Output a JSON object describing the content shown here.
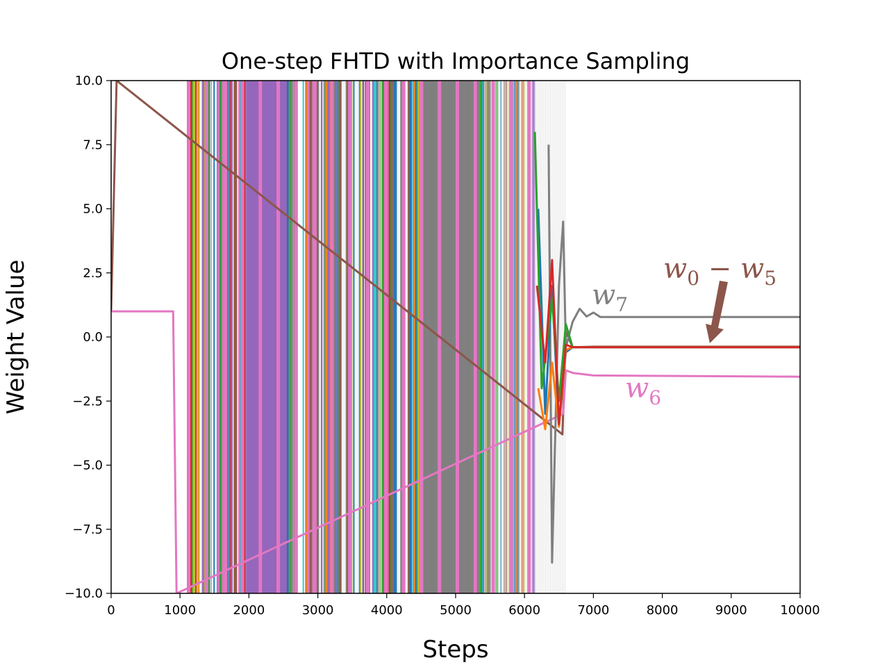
{
  "chart_data": {
    "type": "line",
    "title": "One-step FHTD with Importance Sampling",
    "xlabel": "Steps",
    "ylabel": "Weight Value",
    "xlim": [
      0,
      10000
    ],
    "ylim": [
      -10,
      10
    ],
    "x_ticks": [
      "0",
      "1000",
      "2000",
      "3000",
      "4000",
      "5000",
      "6000",
      "7000",
      "8000",
      "9000",
      "10000"
    ],
    "y_ticks": [
      "−10.0",
      "−7.5",
      "−5.0",
      "−2.5",
      "0.0",
      "2.5",
      "5.0",
      "7.5",
      "10.0"
    ],
    "grid": false,
    "legend": "none",
    "annotations": [
      {
        "label": "w0 − w5",
        "color": "#8c564b"
      },
      {
        "label": "w7",
        "color": "#7f7f7f"
      },
      {
        "label": "w6",
        "color": "#e377c2"
      }
    ],
    "series": [
      {
        "color": "#8c564b",
        "x": [
          0,
          80,
          6550,
          6600,
          6700,
          7000,
          10000
        ],
        "y": [
          1.0,
          10.0,
          -3.8,
          0.2,
          -0.4,
          -0.38,
          -0.38
        ]
      },
      {
        "color": "#e377c2",
        "x": [
          0,
          900,
          950,
          6560,
          6600,
          6700,
          7000,
          10000
        ],
        "y": [
          1.0,
          1.0,
          -10.0,
          -3.0,
          -1.3,
          -1.4,
          -1.5,
          -1.55
        ]
      },
      {
        "color": "#7f7f7f",
        "x": [
          6350,
          6400,
          6500,
          6560,
          6600,
          6700,
          6800,
          6900,
          7000,
          7100,
          10000
        ],
        "y": [
          7.5,
          -8.8,
          2.0,
          4.5,
          -0.4,
          0.6,
          1.1,
          0.8,
          0.95,
          0.78,
          0.78
        ]
      },
      {
        "color": "#1f77b4",
        "x": [
          6200,
          6300,
          6400,
          6500,
          6600,
          6700,
          10000
        ],
        "y": [
          5.0,
          -3.0,
          2.0,
          -3.5,
          -0.6,
          -0.4,
          -0.4
        ]
      },
      {
        "color": "#ff7f0e",
        "x": [
          6200,
          6300,
          6400,
          6500,
          6600,
          6700,
          10000
        ],
        "y": [
          -2.0,
          -3.6,
          -1.0,
          -3.5,
          -0.5,
          -0.4,
          -0.4
        ]
      },
      {
        "color": "#2ca02c",
        "x": [
          6150,
          6250,
          6400,
          6500,
          6600,
          6700,
          10000
        ],
        "y": [
          8.0,
          -2.0,
          1.5,
          -2.5,
          0.5,
          -0.4,
          -0.4
        ]
      },
      {
        "color": "#d62728",
        "x": [
          6180,
          6300,
          6400,
          6500,
          6600,
          6700,
          10000
        ],
        "y": [
          2.0,
          -1.0,
          3.0,
          -3.4,
          -0.3,
          -0.4,
          -0.4
        ]
      }
    ]
  }
}
